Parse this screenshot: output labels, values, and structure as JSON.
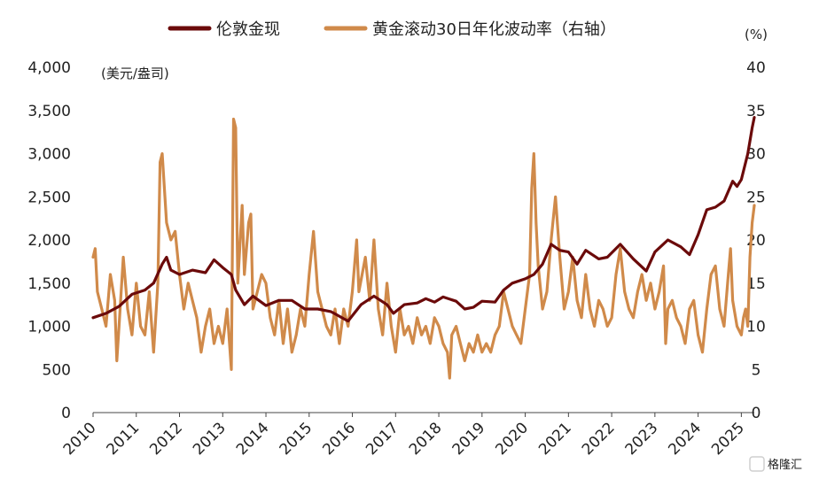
{
  "chart_data": {
    "type": "line",
    "left_unit": "(美元/盎司)",
    "right_unit": "(%)",
    "x": {
      "ticks": [
        "2010",
        "2011",
        "2012",
        "2013",
        "2014",
        "2015",
        "2016",
        "2017",
        "2018",
        "2019",
        "2020",
        "2021",
        "2022",
        "2023",
        "2024",
        "2025"
      ],
      "range": [
        2010.0,
        2025.3
      ]
    },
    "y_left": {
      "ticks": [
        "0",
        "500",
        "1,000",
        "1,500",
        "2,000",
        "2,500",
        "3,000",
        "3,500",
        "4,000"
      ],
      "range": [
        0,
        4000
      ]
    },
    "y_right": {
      "ticks": [
        "0",
        "5",
        "10",
        "15",
        "20",
        "25",
        "30",
        "35",
        "40"
      ],
      "range": [
        0,
        40
      ]
    },
    "grid": false,
    "legend_position": "top",
    "series": [
      {
        "name": "伦敦金现",
        "axis": "left",
        "color": "#6b0a0a",
        "points": [
          [
            2010.0,
            1100
          ],
          [
            2010.3,
            1150
          ],
          [
            2010.6,
            1230
          ],
          [
            2010.9,
            1370
          ],
          [
            2011.2,
            1420
          ],
          [
            2011.4,
            1500
          ],
          [
            2011.6,
            1720
          ],
          [
            2011.7,
            1800
          ],
          [
            2011.8,
            1650
          ],
          [
            2012.0,
            1600
          ],
          [
            2012.3,
            1650
          ],
          [
            2012.6,
            1620
          ],
          [
            2012.8,
            1770
          ],
          [
            2013.0,
            1680
          ],
          [
            2013.2,
            1600
          ],
          [
            2013.3,
            1420
          ],
          [
            2013.5,
            1250
          ],
          [
            2013.7,
            1350
          ],
          [
            2014.0,
            1240
          ],
          [
            2014.3,
            1300
          ],
          [
            2014.6,
            1300
          ],
          [
            2014.9,
            1200
          ],
          [
            2015.2,
            1200
          ],
          [
            2015.5,
            1170
          ],
          [
            2015.9,
            1060
          ],
          [
            2016.2,
            1250
          ],
          [
            2016.5,
            1350
          ],
          [
            2016.8,
            1250
          ],
          [
            2016.95,
            1150
          ],
          [
            2017.2,
            1250
          ],
          [
            2017.5,
            1270
          ],
          [
            2017.7,
            1320
          ],
          [
            2017.9,
            1280
          ],
          [
            2018.1,
            1340
          ],
          [
            2018.4,
            1290
          ],
          [
            2018.6,
            1200
          ],
          [
            2018.8,
            1220
          ],
          [
            2019.0,
            1290
          ],
          [
            2019.3,
            1280
          ],
          [
            2019.5,
            1420
          ],
          [
            2019.7,
            1500
          ],
          [
            2020.0,
            1550
          ],
          [
            2020.2,
            1600
          ],
          [
            2020.4,
            1720
          ],
          [
            2020.6,
            1950
          ],
          [
            2020.8,
            1880
          ],
          [
            2021.0,
            1860
          ],
          [
            2021.2,
            1720
          ],
          [
            2021.4,
            1880
          ],
          [
            2021.7,
            1780
          ],
          [
            2021.9,
            1800
          ],
          [
            2022.2,
            1950
          ],
          [
            2022.5,
            1780
          ],
          [
            2022.8,
            1640
          ],
          [
            2023.0,
            1860
          ],
          [
            2023.3,
            2000
          ],
          [
            2023.6,
            1920
          ],
          [
            2023.8,
            1830
          ],
          [
            2024.0,
            2060
          ],
          [
            2024.2,
            2350
          ],
          [
            2024.4,
            2380
          ],
          [
            2024.6,
            2450
          ],
          [
            2024.8,
            2680
          ],
          [
            2024.9,
            2620
          ],
          [
            2025.0,
            2700
          ],
          [
            2025.15,
            3000
          ],
          [
            2025.25,
            3300
          ],
          [
            2025.3,
            3420
          ]
        ]
      },
      {
        "name": "黄金滚动30日年化波动率（右轴）",
        "axis": "right",
        "color": "#d08a4a",
        "points": [
          [
            2010.0,
            18
          ],
          [
            2010.05,
            19
          ],
          [
            2010.1,
            14
          ],
          [
            2010.2,
            12
          ],
          [
            2010.3,
            10
          ],
          [
            2010.4,
            16
          ],
          [
            2010.5,
            13
          ],
          [
            2010.55,
            6
          ],
          [
            2010.6,
            10
          ],
          [
            2010.7,
            18
          ],
          [
            2010.8,
            12
          ],
          [
            2010.9,
            9
          ],
          [
            2011.0,
            15
          ],
          [
            2011.1,
            10
          ],
          [
            2011.2,
            9
          ],
          [
            2011.3,
            14
          ],
          [
            2011.4,
            7
          ],
          [
            2011.5,
            15
          ],
          [
            2011.55,
            29
          ],
          [
            2011.6,
            30
          ],
          [
            2011.7,
            22
          ],
          [
            2011.8,
            20
          ],
          [
            2011.9,
            21
          ],
          [
            2012.0,
            16
          ],
          [
            2012.1,
            12
          ],
          [
            2012.2,
            15
          ],
          [
            2012.3,
            13
          ],
          [
            2012.4,
            11
          ],
          [
            2012.5,
            7
          ],
          [
            2012.6,
            10
          ],
          [
            2012.7,
            12
          ],
          [
            2012.8,
            8
          ],
          [
            2012.9,
            10
          ],
          [
            2013.0,
            8
          ],
          [
            2013.1,
            12
          ],
          [
            2013.2,
            5
          ],
          [
            2013.25,
            34
          ],
          [
            2013.3,
            33
          ],
          [
            2013.35,
            15
          ],
          [
            2013.45,
            24
          ],
          [
            2013.5,
            16
          ],
          [
            2013.6,
            22
          ],
          [
            2013.65,
            23
          ],
          [
            2013.7,
            12
          ],
          [
            2013.8,
            14
          ],
          [
            2013.9,
            16
          ],
          [
            2014.0,
            15
          ],
          [
            2014.1,
            11
          ],
          [
            2014.2,
            9
          ],
          [
            2014.3,
            13
          ],
          [
            2014.4,
            8
          ],
          [
            2014.5,
            12
          ],
          [
            2014.6,
            7
          ],
          [
            2014.7,
            9
          ],
          [
            2014.8,
            12
          ],
          [
            2014.9,
            10
          ],
          [
            2015.0,
            16
          ],
          [
            2015.1,
            21
          ],
          [
            2015.2,
            14
          ],
          [
            2015.3,
            12
          ],
          [
            2015.4,
            10
          ],
          [
            2015.5,
            9
          ],
          [
            2015.6,
            12
          ],
          [
            2015.7,
            8
          ],
          [
            2015.8,
            12
          ],
          [
            2015.9,
            10
          ],
          [
            2016.0,
            14
          ],
          [
            2016.1,
            20
          ],
          [
            2016.15,
            14
          ],
          [
            2016.3,
            18
          ],
          [
            2016.4,
            13
          ],
          [
            2016.5,
            20
          ],
          [
            2016.6,
            12
          ],
          [
            2016.7,
            9
          ],
          [
            2016.8,
            15
          ],
          [
            2016.9,
            10
          ],
          [
            2017.0,
            7
          ],
          [
            2017.1,
            12
          ],
          [
            2017.2,
            9
          ],
          [
            2017.3,
            10
          ],
          [
            2017.4,
            8
          ],
          [
            2017.5,
            11
          ],
          [
            2017.6,
            9
          ],
          [
            2017.7,
            10
          ],
          [
            2017.8,
            8
          ],
          [
            2017.9,
            11
          ],
          [
            2018.0,
            10
          ],
          [
            2018.1,
            8
          ],
          [
            2018.2,
            7
          ],
          [
            2018.25,
            4
          ],
          [
            2018.3,
            9
          ],
          [
            2018.4,
            10
          ],
          [
            2018.5,
            8
          ],
          [
            2018.6,
            6
          ],
          [
            2018.7,
            8
          ],
          [
            2018.8,
            7
          ],
          [
            2018.9,
            9
          ],
          [
            2019.0,
            7
          ],
          [
            2019.1,
            8
          ],
          [
            2019.2,
            7
          ],
          [
            2019.3,
            9
          ],
          [
            2019.4,
            10
          ],
          [
            2019.5,
            14
          ],
          [
            2019.6,
            12
          ],
          [
            2019.7,
            10
          ],
          [
            2019.8,
            9
          ],
          [
            2019.9,
            8
          ],
          [
            2020.0,
            12
          ],
          [
            2020.1,
            16
          ],
          [
            2020.15,
            26
          ],
          [
            2020.2,
            30
          ],
          [
            2020.25,
            22
          ],
          [
            2020.3,
            17
          ],
          [
            2020.4,
            12
          ],
          [
            2020.5,
            14
          ],
          [
            2020.6,
            20
          ],
          [
            2020.7,
            25
          ],
          [
            2020.8,
            18
          ],
          [
            2020.9,
            12
          ],
          [
            2021.0,
            14
          ],
          [
            2021.1,
            18
          ],
          [
            2021.2,
            13
          ],
          [
            2021.3,
            11
          ],
          [
            2021.4,
            16
          ],
          [
            2021.5,
            12
          ],
          [
            2021.6,
            10
          ],
          [
            2021.7,
            13
          ],
          [
            2021.8,
            12
          ],
          [
            2021.9,
            10
          ],
          [
            2022.0,
            11
          ],
          [
            2022.1,
            16
          ],
          [
            2022.2,
            19
          ],
          [
            2022.3,
            14
          ],
          [
            2022.4,
            12
          ],
          [
            2022.5,
            11
          ],
          [
            2022.6,
            14
          ],
          [
            2022.7,
            16
          ],
          [
            2022.8,
            13
          ],
          [
            2022.9,
            15
          ],
          [
            2023.0,
            12
          ],
          [
            2023.1,
            14
          ],
          [
            2023.2,
            17
          ],
          [
            2023.25,
            8
          ],
          [
            2023.3,
            12
          ],
          [
            2023.4,
            13
          ],
          [
            2023.5,
            11
          ],
          [
            2023.6,
            10
          ],
          [
            2023.7,
            8
          ],
          [
            2023.8,
            12
          ],
          [
            2023.9,
            13
          ],
          [
            2024.0,
            9
          ],
          [
            2024.1,
            7
          ],
          [
            2024.2,
            12
          ],
          [
            2024.3,
            16
          ],
          [
            2024.4,
            17
          ],
          [
            2024.5,
            12
          ],
          [
            2024.6,
            10
          ],
          [
            2024.7,
            16
          ],
          [
            2024.75,
            19
          ],
          [
            2024.8,
            13
          ],
          [
            2024.9,
            10
          ],
          [
            2025.0,
            9
          ],
          [
            2025.05,
            11
          ],
          [
            2025.1,
            12
          ],
          [
            2025.15,
            10
          ],
          [
            2025.2,
            18
          ],
          [
            2025.25,
            22
          ],
          [
            2025.3,
            24
          ]
        ]
      }
    ]
  },
  "watermark": "格隆汇"
}
